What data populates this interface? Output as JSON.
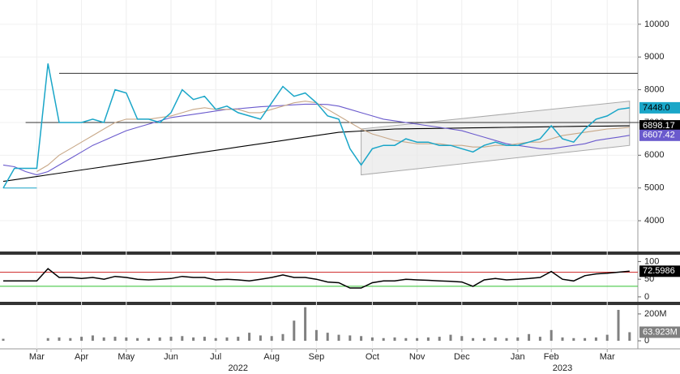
{
  "chart_data": [
    {
      "type": "line",
      "ylim": [
        3060,
        10740
      ],
      "yticks": [
        4000,
        5000,
        6000,
        7000,
        8000,
        9000,
        10000
      ],
      "grid": true,
      "hlines": [
        {
          "value": 8500,
          "x": [
            5,
            56
          ],
          "color": "#333333"
        },
        {
          "value": 7000,
          "x": [
            2,
            56
          ],
          "color": "#333333"
        },
        {
          "value": 5000,
          "x": [
            0,
            3
          ],
          "color": "#1aa6c8"
        }
      ],
      "channel": {
        "x": [
          32,
          56
        ],
        "lower": [
          5400,
          6300
        ],
        "upper": [
          6800,
          7650
        ],
        "color": "#e8e8e8"
      },
      "series": [
        {
          "color": "#000000",
          "last_label": "6898.17",
          "values": [
            5200,
            5250,
            5300,
            5350,
            5400,
            5450,
            5500,
            5550,
            5600,
            5650,
            5700,
            5750,
            5800,
            5850,
            5900,
            5950,
            6000,
            6050,
            6100,
            6150,
            6200,
            6250,
            6300,
            6350,
            6400,
            6450,
            6500,
            6550,
            6600,
            6650,
            6700,
            6720,
            6740,
            6760,
            6780,
            6800,
            6805,
            6810,
            6815,
            6820,
            6825,
            6830,
            6835,
            6840,
            6845,
            6850,
            6855,
            6860,
            6865,
            6870,
            6875,
            6880,
            6885,
            6888,
            6891,
            6895,
            6898.17
          ]
        },
        {
          "color": "#6a5acd",
          "last_label": "6607.42",
          "values": [
            5700,
            5650,
            5500,
            5400,
            5500,
            5700,
            5900,
            6100,
            6300,
            6450,
            6600,
            6750,
            6850,
            6950,
            7050,
            7150,
            7200,
            7250,
            7300,
            7350,
            7400,
            7420,
            7450,
            7480,
            7500,
            7520,
            7540,
            7560,
            7560,
            7550,
            7500,
            7400,
            7300,
            7200,
            7100,
            7050,
            7000,
            6950,
            6900,
            6850,
            6800,
            6750,
            6650,
            6550,
            6450,
            6350,
            6300,
            6250,
            6200,
            6200,
            6250,
            6300,
            6350,
            6450,
            6500,
            6550,
            6607.42
          ]
        },
        {
          "color": "#c8a888",
          "values": [
            null,
            null,
            null,
            5500,
            5700,
            6000,
            6200,
            6400,
            6600,
            6800,
            7000,
            7100,
            7100,
            7100,
            7150,
            7200,
            7300,
            7400,
            7450,
            7400,
            7400,
            7400,
            7300,
            7300,
            7400,
            7500,
            7600,
            7650,
            7600,
            7400,
            7200,
            7000,
            6800,
            6650,
            6550,
            6450,
            6400,
            6350,
            6350,
            6350,
            6300,
            6300,
            6250,
            6250,
            6300,
            6300,
            6350,
            6400,
            6400,
            6500,
            6600,
            6650,
            6700,
            6750,
            6800,
            6820,
            6850
          ]
        },
        {
          "color": "#1aa6c8",
          "last_label": "7448.0",
          "values": [
            5000,
            5600,
            5600,
            5600,
            8800,
            7000,
            7000,
            7000,
            7100,
            7000,
            8000,
            7900,
            7100,
            7100,
            7000,
            7300,
            8000,
            7700,
            7800,
            7400,
            7500,
            7300,
            7200,
            7100,
            7600,
            8100,
            7800,
            7900,
            7600,
            7200,
            7100,
            6200,
            5700,
            6200,
            6300,
            6300,
            6500,
            6400,
            6400,
            6300,
            6300,
            6200,
            6100,
            6300,
            6400,
            6300,
            6300,
            6400,
            6500,
            6900,
            6500,
            6400,
            6800,
            7100,
            7200,
            7400,
            7448
          ]
        }
      ]
    },
    {
      "type": "line",
      "ylim": [
        -14,
        117
      ],
      "yticks": [
        0,
        50,
        100
      ],
      "grid": false,
      "levels": [
        {
          "value": 70,
          "color": "#d03030"
        },
        {
          "value": 30,
          "color": "#30c030"
        }
      ],
      "series": [
        {
          "color": "#000000",
          "last_label": "72.5986",
          "values": [
            45,
            45,
            45,
            45,
            80,
            55,
            55,
            52,
            55,
            50,
            58,
            55,
            50,
            48,
            50,
            52,
            58,
            55,
            55,
            48,
            50,
            48,
            45,
            50,
            55,
            62,
            55,
            55,
            50,
            42,
            40,
            25,
            25,
            40,
            45,
            45,
            50,
            48,
            47,
            45,
            44,
            42,
            30,
            48,
            52,
            48,
            50,
            52,
            55,
            72,
            50,
            45,
            60,
            65,
            67,
            70,
            72.5986
          ]
        }
      ]
    },
    {
      "type": "bar",
      "ylim": [
        -60,
        260
      ],
      "yticks": [
        0,
        {
          "value": 200,
          "label": "200M"
        }
      ],
      "grid": false,
      "series": [
        {
          "color": "#808080",
          "last_label": "63.923M",
          "values": [
            15,
            0,
            0,
            0,
            20,
            25,
            20,
            30,
            40,
            25,
            30,
            25,
            20,
            20,
            25,
            30,
            35,
            25,
            30,
            20,
            25,
            30,
            60,
            40,
            35,
            50,
            150,
            250,
            80,
            60,
            45,
            40,
            35,
            25,
            20,
            25,
            20,
            20,
            25,
            30,
            45,
            35,
            20,
            20,
            25,
            20,
            25,
            50,
            30,
            80,
            25,
            20,
            20,
            25,
            45,
            230,
            63.923
          ]
        }
      ]
    }
  ],
  "time_axis": {
    "months": [
      null,
      null,
      null,
      "Mar",
      null,
      null,
      null,
      "Apr",
      null,
      null,
      null,
      "May",
      null,
      null,
      null,
      "Jun",
      null,
      null,
      null,
      "Jul",
      null,
      null,
      null,
      null,
      "Aug",
      null,
      null,
      null,
      "Sep",
      null,
      null,
      null,
      null,
      "Oct",
      null,
      null,
      null,
      "Nov",
      null,
      null,
      null,
      "Dec",
      null,
      null,
      null,
      null,
      "Jan",
      null,
      null,
      "Feb",
      null,
      null,
      null,
      null,
      "Mar",
      null,
      null
    ],
    "years": [
      null,
      null,
      null,
      null,
      null,
      null,
      null,
      null,
      null,
      null,
      null,
      null,
      null,
      null,
      null,
      null,
      null,
      null,
      null,
      null,
      null,
      "2022",
      null,
      null,
      null,
      null,
      null,
      null,
      null,
      null,
      null,
      null,
      null,
      null,
      null,
      null,
      null,
      null,
      null,
      null,
      null,
      null,
      null,
      null,
      null,
      null,
      null,
      null,
      null,
      null,
      "2023",
      null,
      null,
      null,
      null,
      null,
      null
    ]
  }
}
